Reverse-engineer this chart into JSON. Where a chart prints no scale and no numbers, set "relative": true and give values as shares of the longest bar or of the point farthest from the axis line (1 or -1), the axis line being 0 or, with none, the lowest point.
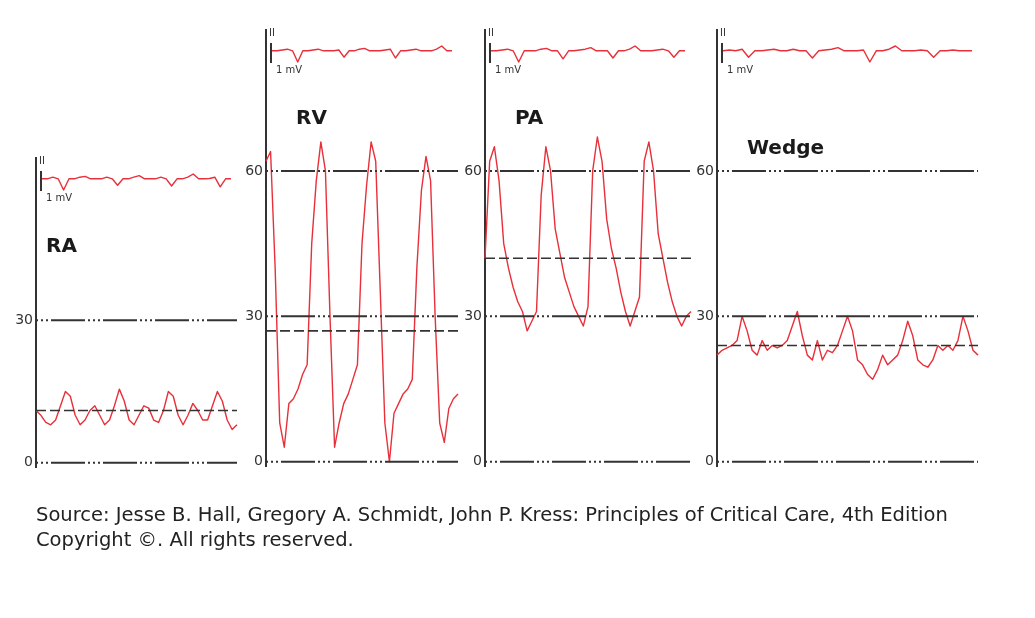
{
  "chart_data": [
    {
      "type": "line",
      "relative": true,
      "annotations": [
        "II",
        "1 mV"
      ],
      "categories": [
        null,
        null,
        null,
        null,
        null,
        null,
        null,
        null,
        null,
        null,
        null,
        null,
        null,
        null,
        null,
        null,
        null,
        null,
        null,
        null,
        null,
        null,
        null,
        null,
        null,
        null,
        null,
        null,
        null,
        null,
        null,
        null,
        null,
        null,
        null,
        null
      ],
      "series": [
        {
          "color": "#e8303a",
          "values": [
            0.7,
            0.7,
            0.8,
            0.7,
            0,
            0.7,
            0.7,
            0.8,
            0.85,
            0.7,
            0.7,
            0.7,
            0.8,
            0.7,
            0.3,
            0.7,
            0.7,
            0.8,
            0.9,
            0.7,
            0.7,
            0.7,
            0.8,
            0.7,
            0.25,
            0.7,
            0.7,
            0.8,
            1,
            0.7,
            0.7,
            0.72,
            0.8,
            0.2,
            0.7,
            0.7
          ]
        }
      ],
      "marker": "none"
    },
    {
      "type": "line",
      "title": "RA",
      "annotations": [
        "Source: Jesse B. Hall, Gregory A. Schmidt, John P. Kress: Principles of Critical Care, 4th Edition",
        "Copyright ©. All rights reserved."
      ],
      "categories": [
        null,
        null,
        null,
        null,
        null,
        null,
        null,
        null,
        null,
        null,
        null,
        null,
        null,
        null,
        null,
        null,
        null,
        null,
        null,
        null,
        null,
        null,
        null,
        null,
        null,
        null,
        null,
        null,
        null,
        null,
        null,
        null,
        null,
        null,
        null,
        null,
        null,
        null,
        null,
        null,
        null,
        null
      ],
      "series": [
        {
          "color": "#e8303a",
          "values": [
            11,
            10,
            8.5,
            8,
            9,
            12,
            15,
            14,
            10,
            8,
            9,
            11,
            12,
            10,
            8,
            9,
            12,
            15.5,
            13,
            9,
            8,
            10,
            12,
            11.5,
            9,
            8.5,
            11,
            15,
            14,
            10,
            8,
            10,
            12.5,
            11,
            9,
            9,
            12,
            15,
            13,
            9,
            7,
            8
          ]
        }
      ],
      "ylim": [
        -1,
        64
      ],
      "yticks": [
        0,
        30
      ],
      "grid": "y",
      "marker": "none",
      "ref_lines": [
        {
          "axis": "y",
          "value": 11,
          "line_style": "dashed"
        }
      ]
    },
    {
      "type": "line",
      "relative": true,
      "annotations": [
        "II",
        "1 mV"
      ],
      "categories": [
        null,
        null,
        null,
        null,
        null,
        null,
        null,
        null,
        null,
        null,
        null,
        null,
        null,
        null,
        null,
        null,
        null,
        null,
        null,
        null,
        null,
        null,
        null,
        null,
        null,
        null,
        null,
        null,
        null,
        null,
        null,
        null,
        null,
        null,
        null,
        null
      ],
      "series": [
        {
          "color": "#e8303a",
          "values": [
            0.7,
            0.7,
            0.75,
            0.8,
            0.7,
            0,
            0.7,
            0.7,
            0.75,
            0.8,
            0.7,
            0.7,
            0.7,
            0.75,
            0.3,
            0.7,
            0.7,
            0.8,
            0.85,
            0.7,
            0.7,
            0.7,
            0.75,
            0.8,
            0.25,
            0.7,
            0.7,
            0.75,
            0.8,
            0.7,
            0.7,
            0.7,
            0.8,
            1,
            0.7,
            0.7
          ]
        }
      ],
      "marker": "none"
    },
    {
      "type": "line",
      "title": "RV",
      "categories": [
        null,
        null,
        null,
        null,
        null,
        null,
        null,
        null,
        null,
        null,
        null,
        null,
        null,
        null,
        null,
        null,
        null,
        null,
        null,
        null,
        null,
        null,
        null,
        null,
        null,
        null,
        null,
        null,
        null,
        null,
        null,
        null,
        null,
        null,
        null,
        null,
        null,
        null,
        null,
        null,
        null,
        null,
        null
      ],
      "series": [
        {
          "color": "#e8303a",
          "values": [
            62,
            64,
            40,
            8,
            3,
            12,
            13,
            15,
            18,
            20,
            45,
            58,
            66,
            60,
            30,
            3,
            8,
            12,
            14,
            17,
            20,
            45,
            57,
            66,
            62,
            35,
            8,
            0,
            10,
            12,
            14,
            15,
            17,
            40,
            56,
            63,
            58,
            30,
            8,
            4,
            11,
            13,
            14
          ]
        }
      ],
      "ylim": [
        -1,
        89
      ],
      "yticks": [
        0,
        30,
        60
      ],
      "grid": "y",
      "marker": "none",
      "ref_lines": [
        {
          "axis": "y",
          "value": 27,
          "line_style": "dashed"
        }
      ]
    },
    {
      "type": "line",
      "relative": true,
      "annotations": [
        "II",
        "1 mV"
      ],
      "categories": [
        null,
        null,
        null,
        null,
        null,
        null,
        null,
        null,
        null,
        null,
        null,
        null,
        null,
        null,
        null,
        null,
        null,
        null,
        null,
        null,
        null,
        null,
        null,
        null,
        null,
        null,
        null,
        null,
        null,
        null,
        null,
        null,
        null,
        null,
        null,
        null
      ],
      "series": [
        {
          "color": "#e8303a",
          "values": [
            0.7,
            0.7,
            0.75,
            0.8,
            0.7,
            0,
            0.7,
            0.7,
            0.7,
            0.8,
            0.85,
            0.7,
            0.7,
            0.2,
            0.7,
            0.7,
            0.75,
            0.8,
            0.9,
            0.7,
            0.7,
            0.7,
            0.25,
            0.7,
            0.7,
            0.8,
            1,
            0.7,
            0.7,
            0.7,
            0.75,
            0.8,
            0.7,
            0.3,
            0.7,
            0.7
          ]
        }
      ],
      "marker": "none"
    },
    {
      "type": "line",
      "title": "PA",
      "categories": [
        null,
        null,
        null,
        null,
        null,
        null,
        null,
        null,
        null,
        null,
        null,
        null,
        null,
        null,
        null,
        null,
        null,
        null,
        null,
        null,
        null,
        null,
        null,
        null,
        null,
        null,
        null,
        null,
        null,
        null,
        null,
        null,
        null,
        null,
        null,
        null,
        null,
        null,
        null,
        null,
        null,
        null,
        null,
        null,
        null
      ],
      "series": [
        {
          "color": "#e8303a",
          "values": [
            42,
            62,
            65,
            58,
            45,
            40,
            36,
            33,
            31,
            27,
            29,
            31,
            55,
            65,
            60,
            48,
            43,
            38,
            35,
            32,
            30,
            28,
            32,
            60,
            67,
            62,
            50,
            44,
            40,
            35,
            31,
            28,
            31,
            34,
            62,
            66,
            60,
            47,
            42,
            37,
            33,
            30,
            28,
            30,
            31
          ]
        }
      ],
      "ylim": [
        -1,
        89
      ],
      "yticks": [
        0,
        30,
        60
      ],
      "grid": "y",
      "marker": "none",
      "ref_lines": [
        {
          "axis": "y",
          "value": 42,
          "line_style": "dashed"
        }
      ]
    },
    {
      "type": "line",
      "relative": true,
      "annotations": [
        "II",
        "1 mV"
      ],
      "categories": [
        null,
        null,
        null,
        null,
        null,
        null,
        null,
        null,
        null,
        null,
        null,
        null,
        null,
        null,
        null,
        null,
        null,
        null,
        null,
        null,
        null,
        null,
        null,
        null,
        null,
        null,
        null,
        null,
        null,
        null,
        null,
        null,
        null,
        null,
        null,
        null,
        null,
        null,
        null,
        null
      ],
      "series": [
        {
          "color": "#e8303a",
          "values": [
            0.7,
            0.75,
            0.7,
            0.8,
            0.3,
            0.7,
            0.7,
            0.75,
            0.8,
            0.7,
            0.7,
            0.8,
            0.7,
            0.7,
            0.25,
            0.7,
            0.75,
            0.8,
            0.9,
            0.7,
            0.7,
            0.7,
            0.75,
            0,
            0.7,
            0.7,
            0.8,
            1,
            0.7,
            0.7,
            0.7,
            0.75,
            0.7,
            0.3,
            0.7,
            0.7,
            0.75,
            0.7,
            0.7,
            0.7
          ]
        }
      ],
      "marker": "none"
    },
    {
      "type": "line",
      "title": "Wedge",
      "categories": [
        null,
        null,
        null,
        null,
        null,
        null,
        null,
        null,
        null,
        null,
        null,
        null,
        null,
        null,
        null,
        null,
        null,
        null,
        null,
        null,
        null,
        null,
        null,
        null,
        null,
        null,
        null,
        null,
        null,
        null,
        null,
        null,
        null,
        null,
        null,
        null,
        null,
        null,
        null,
        null,
        null,
        null,
        null,
        null,
        null,
        null,
        null,
        null,
        null,
        null,
        null,
        null,
        null
      ],
      "series": [
        {
          "color": "#e8303a",
          "values": [
            22,
            23,
            23.5,
            24,
            25,
            30,
            27,
            23,
            22,
            25,
            23,
            24,
            23.5,
            24,
            25,
            28,
            31,
            26,
            22,
            21,
            25,
            21,
            23,
            22.5,
            24,
            27,
            30,
            27,
            21,
            20,
            18,
            17,
            19,
            22,
            20,
            21,
            22,
            25,
            29,
            26,
            21,
            20,
            19.5,
            21,
            24,
            23,
            24,
            23,
            25,
            30,
            27,
            23,
            22
          ]
        }
      ],
      "ylim": [
        -1,
        89
      ],
      "yticks": [
        0,
        30,
        60
      ],
      "grid": "y",
      "marker": "none",
      "ref_lines": [
        {
          "axis": "y",
          "value": 24,
          "line_style": "dashed"
        }
      ]
    }
  ]
}
